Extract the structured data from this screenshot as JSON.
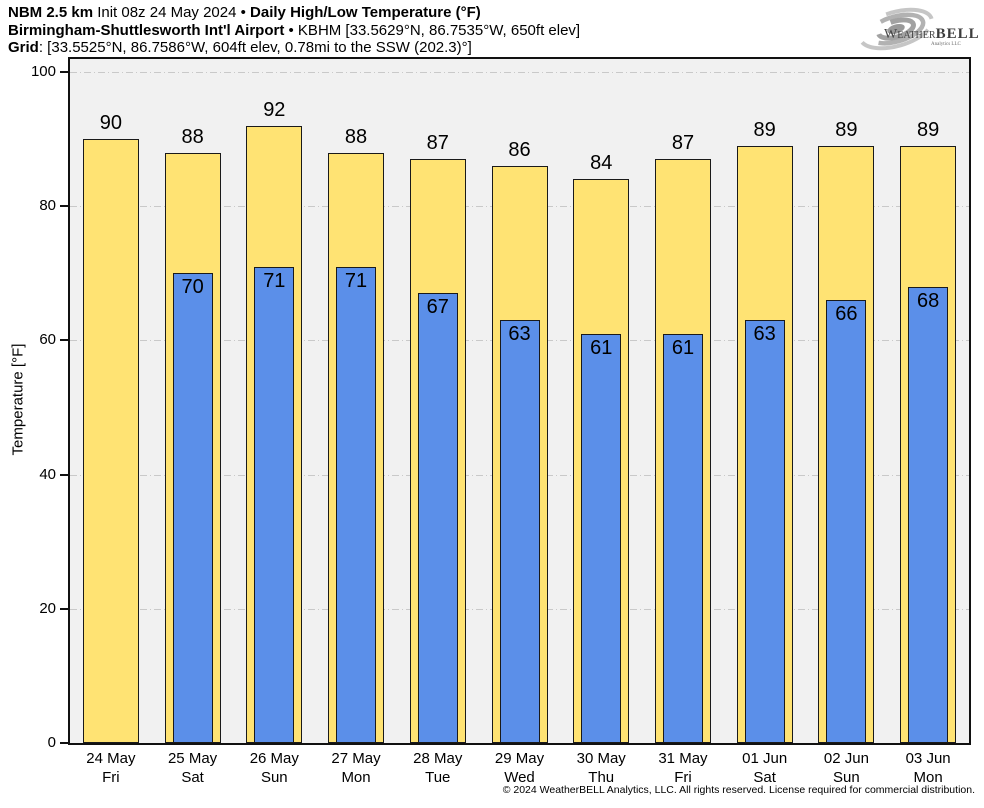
{
  "header": {
    "model": "NBM 2.5 km",
    "init": " Init 08z 24 May 2024 • ",
    "product": "Daily High/Low Temperature (°F)",
    "station": "Birmingham-Shuttlesworth Int'l Airport",
    "station_rest": " • KBHM [33.5629°N, 86.7535°W, 650ft elev]",
    "grid_label": "Grid",
    "grid_rest": ": [33.5525°N, 86.7586°W, 604ft elev, 0.78mi to the SSW (202.3)°]"
  },
  "logo": {
    "part1": "W",
    "part2": "EATHER",
    "part3": "BELL",
    "subtitle": "Analytics LLC"
  },
  "chart_data": {
    "type": "bar",
    "title": "Daily High/Low Temperature (°F)",
    "ylabel": "Temperature [°F]",
    "ylim": [
      0,
      100
    ],
    "yticks": [
      0,
      20,
      40,
      60,
      80,
      100
    ],
    "grid": "horizontal dash-dot gridlines at 20°F intervals",
    "legend_position": "none",
    "plot_background": "#f1f1f1",
    "gridline_color": "#c9c9c9",
    "categories": [
      "24 May",
      "25 May",
      "26 May",
      "27 May",
      "28 May",
      "29 May",
      "30 May",
      "31 May",
      "01 Jun",
      "02 Jun",
      "03 Jun"
    ],
    "weekdays": [
      "Fri",
      "Sat",
      "Sun",
      "Mon",
      "Tue",
      "Wed",
      "Thu",
      "Fri",
      "Sat",
      "Sun",
      "Mon"
    ],
    "series": [
      {
        "name": "Daily High",
        "color": "#FFE373",
        "border_color": "#1a1a1a",
        "values": [
          90,
          88,
          92,
          88,
          87,
          86,
          84,
          87,
          89,
          89,
          89
        ]
      },
      {
        "name": "Daily Low",
        "color": "#5B8FE9",
        "border_color": "#1a1a1a",
        "values": [
          null,
          70,
          71,
          71,
          67,
          63,
          61,
          61,
          63,
          66,
          68
        ]
      }
    ]
  },
  "footer": {
    "copyright": "© 2024 WeatherBELL Analytics, LLC. All rights reserved. License required for commercial distribution."
  }
}
